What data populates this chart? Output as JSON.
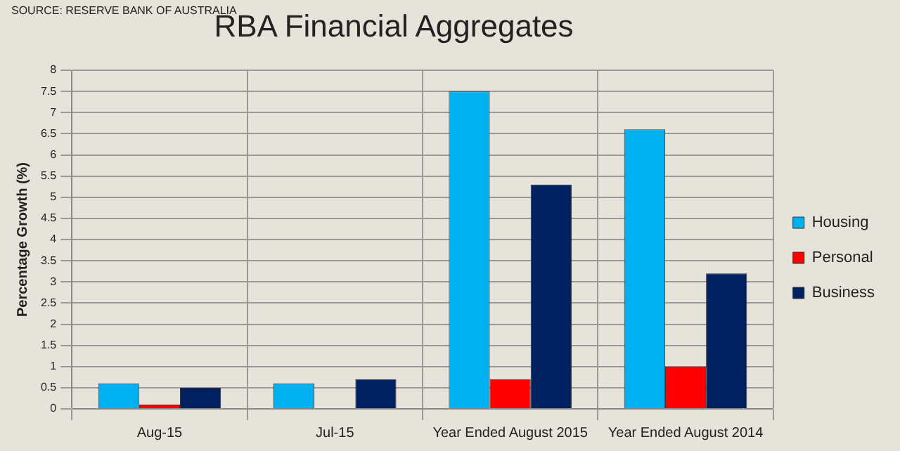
{
  "chart_data": {
    "type": "bar",
    "title": "RBA Financial Aggregates",
    "ylabel": "Percentage Growth (%)",
    "annotations": [
      "SOURCE: RESERVE BANK OF AUSTRALIA"
    ],
    "categories": [
      "Aug-15",
      "Jul-15",
      "Year Ended August 2015",
      "Year Ended August 2014"
    ],
    "series": [
      {
        "name": "Housing",
        "color": "#00b0f0",
        "values": [
          0.6,
          0.6,
          7.5,
          6.6
        ]
      },
      {
        "name": "Personal",
        "color": "#ff0000",
        "values": [
          0.1,
          0,
          0.7,
          1.0
        ]
      },
      {
        "name": "Business",
        "color": "#002060",
        "values": [
          0.5,
          0.7,
          5.3,
          3.2
        ]
      }
    ],
    "ylim": [
      0,
      8
    ],
    "yticks": [
      0,
      0.5,
      1,
      1.5,
      2,
      2.5,
      3,
      3.5,
      4,
      4.5,
      5,
      5.5,
      6,
      6.5,
      7,
      7.5,
      8
    ],
    "grid": true,
    "legend": "right"
  }
}
